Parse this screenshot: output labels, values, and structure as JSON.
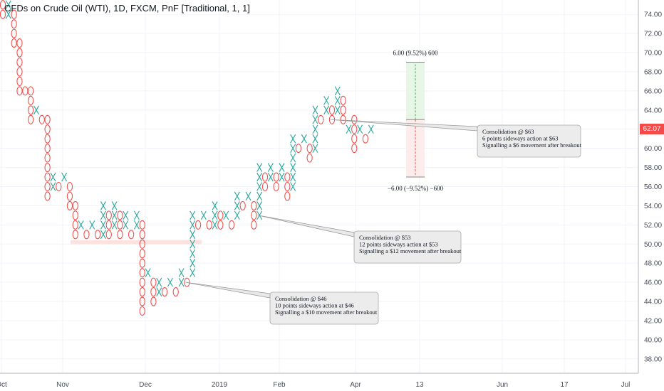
{
  "title": "CFDs on Crude Oil (WTI), 1D, FXCM, PnF [Traditional, 1, 1]",
  "last_price": "62.07",
  "colors": {
    "x_column": "#26a69a",
    "o_column": "#ef5350",
    "last_price_badge": "#f44a4a",
    "grid": "#f0f3fa",
    "consolidation_band": "#fde2e2",
    "target_up_fill": "#e8f6e8",
    "target_down_fill": "#fdecec"
  },
  "y_axis": {
    "ticks": [
      "74.00",
      "72.00",
      "70.00",
      "68.00",
      "66.00",
      "64.00",
      "62.00",
      "60.00",
      "58.00",
      "56.00",
      "54.00",
      "52.00",
      "50.00",
      "48.00",
      "46.00",
      "44.00",
      "42.00",
      "40.00",
      "38.00"
    ],
    "ylim": [
      36.5,
      75.5
    ]
  },
  "x_axis": {
    "ticks": [
      "Oct",
      "Nov",
      "Dec",
      "2019",
      "Feb",
      "Apr",
      "13",
      "Jun",
      "17",
      "Jul"
    ]
  },
  "chart_data": {
    "type": "point-and-figure",
    "box_size": 1,
    "reversal": 1,
    "columns": [
      {
        "type": "O",
        "low": 74,
        "high": 75
      },
      {
        "type": "X",
        "low": 74,
        "high": 75
      },
      {
        "type": "O",
        "low": 71,
        "high": 74
      },
      {
        "type": "O",
        "low": 66,
        "high": 71
      },
      {
        "type": "O",
        "low": 66,
        "high": 66
      },
      {
        "type": "O",
        "low": 63,
        "high": 66
      },
      {
        "type": "X",
        "low": 64,
        "high": 64
      },
      {
        "type": "O",
        "low": 63,
        "high": 63
      },
      {
        "type": "O",
        "low": 55,
        "high": 63
      },
      {
        "type": "X",
        "low": 56,
        "high": 57
      },
      {
        "type": "O",
        "low": 56,
        "high": 56
      },
      {
        "type": "X",
        "low": 57,
        "high": 57
      },
      {
        "type": "O",
        "low": 54,
        "high": 56
      },
      {
        "type": "O",
        "low": 51,
        "high": 54
      },
      {
        "type": "X",
        "low": 52,
        "high": 52
      },
      {
        "type": "O",
        "low": 51,
        "high": 51
      },
      {
        "type": "X",
        "low": 52,
        "high": 52
      },
      {
        "type": "O",
        "low": 51,
        "high": 51
      },
      {
        "type": "X",
        "low": 51,
        "high": 54
      },
      {
        "type": "O",
        "low": 51,
        "high": 53
      },
      {
        "type": "X",
        "low": 52,
        "high": 54
      },
      {
        "type": "O",
        "low": 51,
        "high": 53
      },
      {
        "type": "X",
        "low": 52,
        "high": 53
      },
      {
        "type": "O",
        "low": 51,
        "high": 51
      },
      {
        "type": "X",
        "low": 52,
        "high": 53
      },
      {
        "type": "O",
        "low": 43,
        "high": 52
      },
      {
        "type": "X",
        "low": 47,
        "high": 47
      },
      {
        "type": "O",
        "low": 44,
        "high": 46
      },
      {
        "type": "X",
        "low": 45,
        "high": 46
      },
      {
        "type": "O",
        "low": 45,
        "high": 45
      },
      {
        "type": "X",
        "low": 46,
        "high": 46
      },
      {
        "type": "O",
        "low": 45,
        "high": 45
      },
      {
        "type": "X",
        "low": 46,
        "high": 47
      },
      {
        "type": "O",
        "low": 46,
        "high": 46
      },
      {
        "type": "X",
        "low": 47,
        "high": 53
      },
      {
        "type": "O",
        "low": 52,
        "high": 52
      },
      {
        "type": "X",
        "low": 53,
        "high": 53
      },
      {
        "type": "O",
        "low": 52,
        "high": 52
      },
      {
        "type": "X",
        "low": 52,
        "high": 54
      },
      {
        "type": "O",
        "low": 52,
        "high": 53
      },
      {
        "type": "X",
        "low": 53,
        "high": 53
      },
      {
        "type": "O",
        "low": 52,
        "high": 52
      },
      {
        "type": "X",
        "low": 53,
        "high": 55
      },
      {
        "type": "O",
        "low": 54,
        "high": 54
      },
      {
        "type": "X",
        "low": 55,
        "high": 55
      },
      {
        "type": "O",
        "low": 52,
        "high": 54
      },
      {
        "type": "X",
        "low": 53,
        "high": 58
      },
      {
        "type": "O",
        "low": 56,
        "high": 57
      },
      {
        "type": "X",
        "low": 57,
        "high": 58
      },
      {
        "type": "O",
        "low": 56,
        "high": 57
      },
      {
        "type": "X",
        "low": 57,
        "high": 58
      },
      {
        "type": "O",
        "low": 55,
        "high": 57
      },
      {
        "type": "X",
        "low": 56,
        "high": 61
      },
      {
        "type": "O",
        "low": 60,
        "high": 60
      },
      {
        "type": "X",
        "low": 61,
        "high": 61
      },
      {
        "type": "O",
        "low": 59,
        "high": 60
      },
      {
        "type": "X",
        "low": 60,
        "high": 64
      },
      {
        "type": "O",
        "low": 63,
        "high": 63
      },
      {
        "type": "X",
        "low": 64,
        "high": 65
      },
      {
        "type": "O",
        "low": 63,
        "high": 64
      },
      {
        "type": "X",
        "low": 64,
        "high": 66
      },
      {
        "type": "O",
        "low": 63,
        "high": 65
      },
      {
        "type": "X",
        "low": 62,
        "high": 62
      },
      {
        "type": "O",
        "low": 60,
        "high": 63
      },
      {
        "type": "X",
        "low": 62,
        "high": 62
      },
      {
        "type": "O",
        "low": 61,
        "high": 61
      },
      {
        "type": "X",
        "low": 62,
        "high": 62
      }
    ],
    "consolidation_zone": {
      "price": 50.2,
      "from_column": 12,
      "to_column": 35
    },
    "price_target": {
      "base_price": 63,
      "up_value": 69,
      "down_value": 57,
      "up_label": "6.00 (9.52%) 600",
      "down_label": "−6.00 (−9.52%) −600",
      "up_arrow_tip": "6%",
      "down_arrow_tip": "6%"
    }
  },
  "annotations": [
    {
      "id": "c46",
      "lines": [
        "Consolidation @ $46",
        "10 points sideways action at $46",
        "Signalling a $10 movement after breakout"
      ],
      "anchor_price": 46,
      "anchor_column": 33
    },
    {
      "id": "c53",
      "lines": [
        "Consolidation @ $53",
        "12 points sideways action at $53",
        "Signalling a $12 movement after breakout"
      ],
      "anchor_price": 53,
      "anchor_column": 46
    },
    {
      "id": "c63",
      "lines": [
        "Consolidation @ $63",
        "6 points sideways action at $63",
        "Signalling a $6 movement after breakout"
      ],
      "anchor_price": 63,
      "anchor_column": 59
    }
  ]
}
